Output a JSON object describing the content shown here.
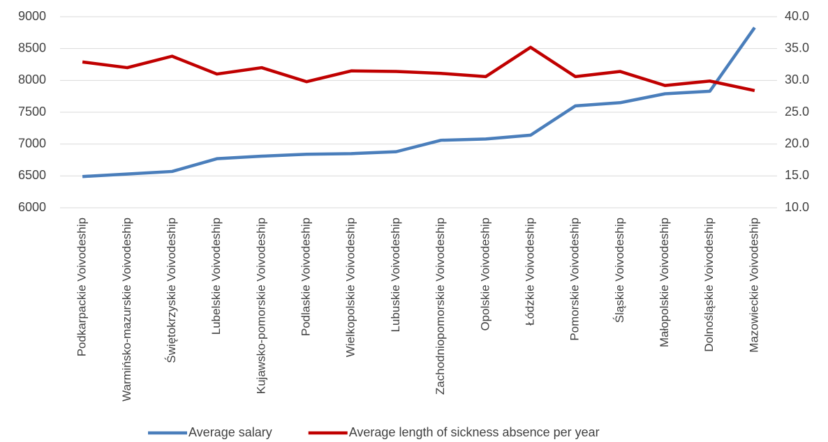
{
  "chart_data": {
    "type": "line",
    "categories": [
      "Podkarpackie Voivodeship",
      "Warmińsko-mazurskie Voivodeship",
      "Świętokrzyskie Voivodeship",
      "Lubelskie Voivodeship",
      "Kujawsko-pomorskie Voivodeship",
      "Podlaskie Voivodeship",
      "Wielkopolskie Voivodeship",
      "Lubuskie Voivodeship",
      "Zachodniopomorskie Voivodeship",
      "Opolskie Voivodeship",
      "Łódzkie Voivodeship",
      "Pomorskie Voivodeship",
      "Śląskie Voivodeship",
      "Małopolskie Voivodeship",
      "Dolnośląskie Voivodeship",
      "Mazowieckie Voivodeship"
    ],
    "series": [
      {
        "name": "Average salary",
        "color": "#4a7ebb",
        "values": [
          6490,
          6530,
          6570,
          6770,
          6810,
          6840,
          6850,
          6880,
          7060,
          7080,
          7140,
          7600,
          7650,
          7790,
          7830,
          8830
        ]
      },
      {
        "name": "Average length of sickness absence per year",
        "color": "#c00000",
        "axis": "y2",
        "values": [
          32.9,
          32.0,
          33.8,
          31.0,
          32.0,
          29.8,
          31.5,
          31.4,
          31.1,
          30.6,
          35.2,
          30.6,
          31.4,
          29.2,
          29.9,
          28.4
        ]
      }
    ],
    "ylim": [
      6000,
      9000
    ],
    "yticks": [
      6000,
      6500,
      7000,
      7500,
      8000,
      8500,
      9000
    ],
    "y2lim": [
      10,
      40
    ],
    "y2ticks": [
      {
        "value": 10,
        "label": "10.0"
      },
      {
        "value": 15,
        "label": "15.0"
      },
      {
        "value": 20,
        "label": "20.0"
      },
      {
        "value": 25,
        "label": "25.0"
      },
      {
        "value": 30,
        "label": "30.0"
      },
      {
        "value": 35,
        "label": "35.0"
      },
      {
        "value": 40,
        "label": "40.0"
      }
    ],
    "grid": true,
    "legend": "bottom"
  }
}
